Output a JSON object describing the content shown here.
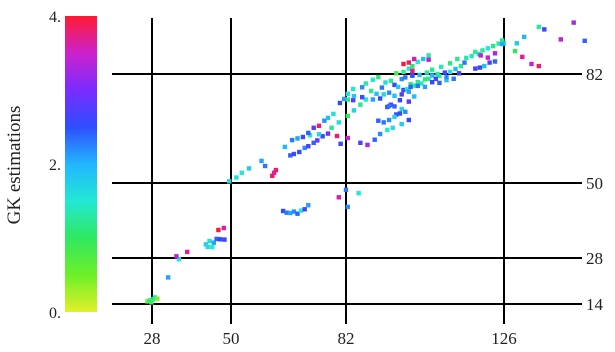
{
  "chart_data": {
    "type": "scatter",
    "title": "",
    "xlabel": "",
    "ylabel": "",
    "xlim": [
      14,
      150
    ],
    "ylim": [
      10,
      96
    ],
    "x_ticks": [
      28,
      50,
      82,
      126
    ],
    "y_ticks": [
      14,
      28,
      50,
      82
    ],
    "grid": true,
    "colorbar": {
      "label": "GK estimations",
      "range": [
        0,
        4
      ],
      "tick_labels": [
        "4.",
        "2.",
        "0."
      ],
      "tick_values": [
        4,
        2,
        0
      ],
      "colors": [
        "#ff1a33",
        "#cc22cc",
        "#7a2cff",
        "#2f4dff",
        "#22b6ff",
        "#23e8d4",
        "#2fe860",
        "#6df028",
        "#e2f02a"
      ]
    },
    "points": [
      [
        26.5,
        14.8,
        0.6
      ],
      [
        27.3,
        15.1,
        1.2
      ],
      [
        28.2,
        15.4,
        1.1
      ],
      [
        28.8,
        16.0,
        1.3
      ],
      [
        29.5,
        15.6,
        0.4
      ],
      [
        27.8,
        14.5,
        0.9
      ],
      [
        32.5,
        22.1,
        2.1
      ],
      [
        35.5,
        27.6,
        1.5
      ],
      [
        37.8,
        29.8,
        3.7
      ],
      [
        34.8,
        28.5,
        3.4
      ],
      [
        43,
        32,
        1.8
      ],
      [
        44,
        33,
        1.6
      ],
      [
        45.2,
        32.5,
        2.1
      ],
      [
        46,
        33.6,
        2.4
      ],
      [
        47,
        33.5,
        2.5
      ],
      [
        48.2,
        33.4,
        2.6
      ],
      [
        43.5,
        31.3,
        1.6
      ],
      [
        44.8,
        31.2,
        1.5
      ],
      [
        46.5,
        36.2,
        4.0
      ],
      [
        48,
        36.8,
        3.6
      ],
      [
        49.5,
        50.5,
        1.7
      ],
      [
        51.5,
        51.6,
        1.6
      ],
      [
        53,
        53,
        1.5
      ],
      [
        55,
        54.3,
        1.8
      ],
      [
        58.5,
        56.5,
        2.1
      ],
      [
        59.5,
        55,
        2.3
      ],
      [
        61.5,
        52.1,
        3.9
      ],
      [
        62,
        53,
        3.6
      ],
      [
        62.5,
        53.8,
        3.8
      ],
      [
        66.5,
        58.1,
        2.4
      ],
      [
        67.5,
        58.5,
        2.6
      ],
      [
        69,
        59.1,
        2.5
      ],
      [
        70.5,
        60.3,
        2.2
      ],
      [
        71.5,
        60.8,
        2.7
      ],
      [
        73,
        61.8,
        2.4
      ],
      [
        74,
        62.5,
        2.9
      ],
      [
        75.5,
        63.7,
        2.5
      ],
      [
        72,
        64,
        1.4
      ],
      [
        74.5,
        64.3,
        1.7
      ],
      [
        77,
        64.5,
        3.0
      ],
      [
        79.5,
        63.8,
        3.8
      ],
      [
        80.5,
        61.5,
        2.6
      ],
      [
        82.5,
        63.2,
        3.5
      ],
      [
        78,
        66.2,
        1.2
      ],
      [
        80,
        67.8,
        1.6
      ],
      [
        82.5,
        69.7,
        1.0
      ],
      [
        84.2,
        71.3,
        1.7
      ],
      [
        86,
        73,
        1.2
      ],
      [
        87.5,
        74.5,
        1.5
      ],
      [
        84,
        74.3,
        2.8
      ],
      [
        86.5,
        75.2,
        2.6
      ],
      [
        89.5,
        74.5,
        2.1
      ],
      [
        91.5,
        74.8,
        2.5
      ],
      [
        93.5,
        72.3,
        2.6
      ],
      [
        94.5,
        73,
        2.9
      ],
      [
        95.5,
        72.5,
        2.4
      ],
      [
        97.5,
        76,
        2.7
      ],
      [
        89,
        77,
        1.2
      ],
      [
        90.5,
        76.2,
        1.9
      ],
      [
        92,
        78,
        2.3
      ],
      [
        93,
        79.5,
        1.6
      ],
      [
        94.5,
        80,
        1.2
      ],
      [
        95.5,
        78.8,
        2.5
      ],
      [
        96.5,
        78.2,
        1.8
      ],
      [
        97.5,
        80.5,
        2.2
      ],
      [
        98,
        77.3,
        2.6
      ],
      [
        99,
        77.5,
        1.4
      ],
      [
        100,
        79,
        1.1
      ],
      [
        101,
        78.6,
        1.3
      ],
      [
        102,
        79.6,
        1.2
      ],
      [
        103,
        79.2,
        1.4
      ],
      [
        104,
        80.4,
        1.1
      ],
      [
        105,
        80.6,
        1.3
      ],
      [
        106,
        81.6,
        2.0
      ],
      [
        107.5,
        82,
        1.4
      ],
      [
        108,
        81.4,
        1.2
      ],
      [
        109.5,
        82.4,
        2.6
      ],
      [
        111,
        82.6,
        1.6
      ],
      [
        112.5,
        83.4,
        2.0
      ],
      [
        114,
        84.2,
        1.2
      ],
      [
        115,
        85.2,
        2.3
      ],
      [
        100,
        78.2,
        2.4
      ],
      [
        102,
        78.5,
        2.3
      ],
      [
        104,
        78.2,
        2.1
      ],
      [
        106,
        79.6,
        2.5
      ],
      [
        108,
        79.4,
        2.4
      ],
      [
        110,
        80.2,
        1.9
      ],
      [
        112,
        80.6,
        2.3
      ],
      [
        104.5,
        82.4,
        1.3
      ],
      [
        106,
        83.2,
        1.2
      ],
      [
        108.5,
        84,
        1.4
      ],
      [
        111,
        85,
        1.1
      ],
      [
        113,
        86.2,
        1.2
      ],
      [
        115.5,
        86.5,
        1.3
      ],
      [
        117,
        87,
        1.4
      ],
      [
        119,
        87.6,
        1.6
      ],
      [
        118,
        88.2,
        1.2
      ],
      [
        120,
        88.6,
        1.3
      ],
      [
        121.5,
        89.2,
        1.5
      ],
      [
        123,
        89.8,
        1.2
      ],
      [
        124.5,
        90.5,
        1.3
      ],
      [
        126,
        90.6,
        1.4
      ],
      [
        125.5,
        91.4,
        1.2
      ],
      [
        119.5,
        87.2,
        3.4
      ],
      [
        121.5,
        86.6,
        3.5
      ],
      [
        123.5,
        87.8,
        3.3
      ],
      [
        96,
        82.2,
        0.8
      ],
      [
        98,
        82.6,
        1.3
      ],
      [
        99.5,
        83.5,
        1.5
      ],
      [
        100.5,
        84.2,
        1.1
      ],
      [
        102,
        85.4,
        1.5
      ],
      [
        103.5,
        86.2,
        1.9
      ],
      [
        105,
        87.2,
        1.3
      ],
      [
        98.5,
        81,
        2.3
      ],
      [
        100.5,
        81.5,
        2.6
      ],
      [
        102.5,
        81.7,
        2.0
      ],
      [
        94,
        72.6,
        2.3
      ],
      [
        96,
        70.1,
        2.5
      ],
      [
        97.5,
        71.7,
        1.7
      ],
      [
        99.5,
        73.9,
        2.8
      ],
      [
        101,
        75.4,
        1.9
      ],
      [
        92.5,
        76,
        1.7
      ],
      [
        94,
        76.5,
        2.2
      ],
      [
        95.5,
        75.6,
        1.9
      ],
      [
        97,
        74.3,
        2.5
      ],
      [
        99.5,
        76.8,
        2.1
      ],
      [
        91,
        68.3,
        2.4
      ],
      [
        92.5,
        67.8,
        2.3
      ],
      [
        94,
        68.5,
        2.2
      ],
      [
        95.5,
        69.4,
        1.7
      ],
      [
        97,
        70.4,
        2.5
      ],
      [
        98.5,
        70.9,
        2.2
      ],
      [
        100.5,
        81.8,
        2.6
      ],
      [
        107,
        80.6,
        2.6
      ],
      [
        110,
        81.1,
        2.2
      ],
      [
        113.5,
        82.2,
        2.6
      ],
      [
        118,
        83.5,
        2.6
      ],
      [
        119.3,
        83.8,
        2.5
      ],
      [
        120.5,
        84.2,
        1.9
      ],
      [
        122,
        85.2,
        2.7
      ],
      [
        123.5,
        85.5,
        2.4
      ],
      [
        98,
        84.8,
        4.0
      ],
      [
        99.5,
        85.2,
        3.8
      ],
      [
        101,
        86.2,
        3.6
      ],
      [
        100.5,
        82.9,
        3.8
      ],
      [
        105,
        86,
        3.4
      ],
      [
        82.5,
        74.5,
        1.2
      ],
      [
        84.2,
        75.5,
        1.8
      ],
      [
        86.5,
        78.1,
        2.2
      ],
      [
        87.5,
        79.2,
        1.3
      ],
      [
        89.5,
        80.3,
        1.5
      ],
      [
        91,
        81.1,
        1.1
      ],
      [
        80.3,
        73.5,
        2.5
      ],
      [
        81.5,
        74.7,
        2.1
      ],
      [
        82.5,
        76.2,
        1.6
      ],
      [
        84,
        77.6,
        1.4
      ],
      [
        73,
        66.2,
        2.8
      ],
      [
        74.5,
        66.8,
        3.8
      ],
      [
        76,
        68.3,
        2.2
      ],
      [
        77,
        69.1,
        1.9
      ],
      [
        78.5,
        70.3,
        1.6
      ],
      [
        65,
        60.6,
        2.0
      ],
      [
        67,
        62.6,
        2.3
      ],
      [
        68.5,
        63.1,
        2.1
      ],
      [
        70,
        63.5,
        2.5
      ],
      [
        71.5,
        64.7,
        2.4
      ],
      [
        80,
        45.8,
        3.6
      ],
      [
        82,
        48,
        2.3
      ],
      [
        82.5,
        43,
        2.2
      ],
      [
        85.5,
        47,
        1.5
      ],
      [
        64.5,
        41.8,
        2.5
      ],
      [
        65.5,
        41.3,
        2.3
      ],
      [
        66.5,
        41.2,
        2.1
      ],
      [
        67.5,
        41.6,
        2.2
      ],
      [
        68.5,
        41,
        2.4
      ],
      [
        69.5,
        41.9,
        1.5
      ],
      [
        70.5,
        42.3,
        2.6
      ],
      [
        71.5,
        43.5,
        2.1
      ],
      [
        86,
        61.8,
        2.7
      ],
      [
        88,
        61.2,
        3.3
      ],
      [
        90,
        62.7,
        2.4
      ],
      [
        91.5,
        64.4,
        2.2
      ],
      [
        93.5,
        65.6,
        1.5
      ],
      [
        95,
        66.2,
        1.6
      ],
      [
        97.5,
        67.3,
        1.8
      ],
      [
        99.5,
        68.5,
        2.5
      ],
      [
        125.5,
        90.4,
        2.1
      ],
      [
        129,
        88.4,
        1.0
      ],
      [
        131,
        86.8,
        3.7
      ],
      [
        133.5,
        84.8,
        3.4
      ],
      [
        135.5,
        84.2,
        3.8
      ],
      [
        135.5,
        95.2,
        1.3
      ],
      [
        137,
        94.5,
        2.6
      ],
      [
        141.5,
        91.7,
        3.4
      ],
      [
        145,
        96.4,
        3.3
      ],
      [
        148,
        91.3,
        2.4
      ],
      [
        129.5,
        90.6,
        1.8
      ],
      [
        131.5,
        92.4,
        2.0
      ]
    ]
  }
}
